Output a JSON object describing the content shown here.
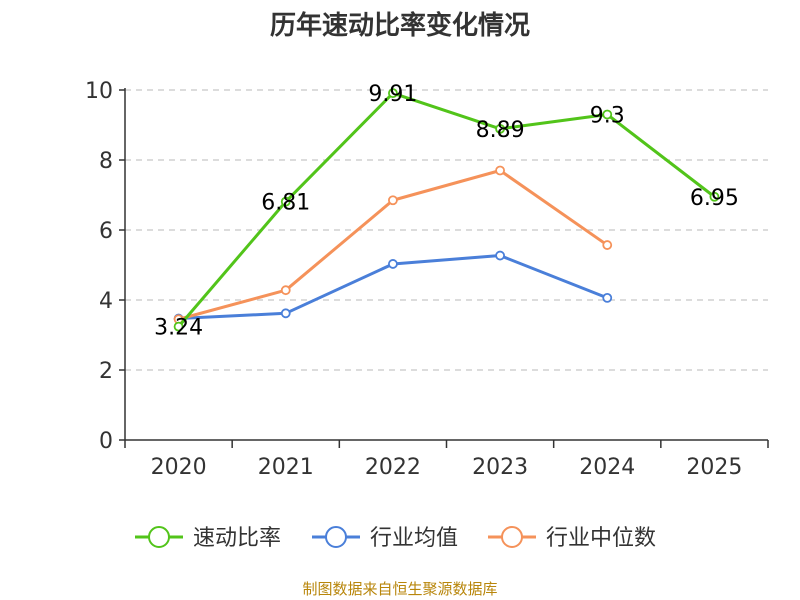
{
  "chart_data": {
    "type": "line",
    "title": "历年速动比率变化情况",
    "xlabel": "",
    "ylabel": "",
    "categories": [
      "2020",
      "2021",
      "2022",
      "2023",
      "2024",
      "2025"
    ],
    "ylim": [
      0,
      10
    ],
    "yticks": [
      "0",
      "2",
      "4",
      "6",
      "8",
      "10"
    ],
    "grid": true,
    "legend_position": "bottom",
    "series": [
      {
        "name": "速动比率",
        "color": "#52c41a",
        "values": [
          3.24,
          6.81,
          9.91,
          8.89,
          9.3,
          6.95
        ],
        "labels": [
          "3.24",
          "6.81",
          "9.91",
          "8.89",
          "9.3",
          "6.95"
        ]
      },
      {
        "name": "行业均值",
        "color": "#4a7fd9",
        "values": [
          3.47,
          3.62,
          5.03,
          5.27,
          4.06,
          null
        ]
      },
      {
        "name": "行业中位数",
        "color": "#f5925a",
        "values": [
          3.45,
          4.28,
          6.85,
          7.7,
          5.57,
          null
        ]
      }
    ]
  },
  "source_text": "制图数据来自恒生聚源数据库"
}
